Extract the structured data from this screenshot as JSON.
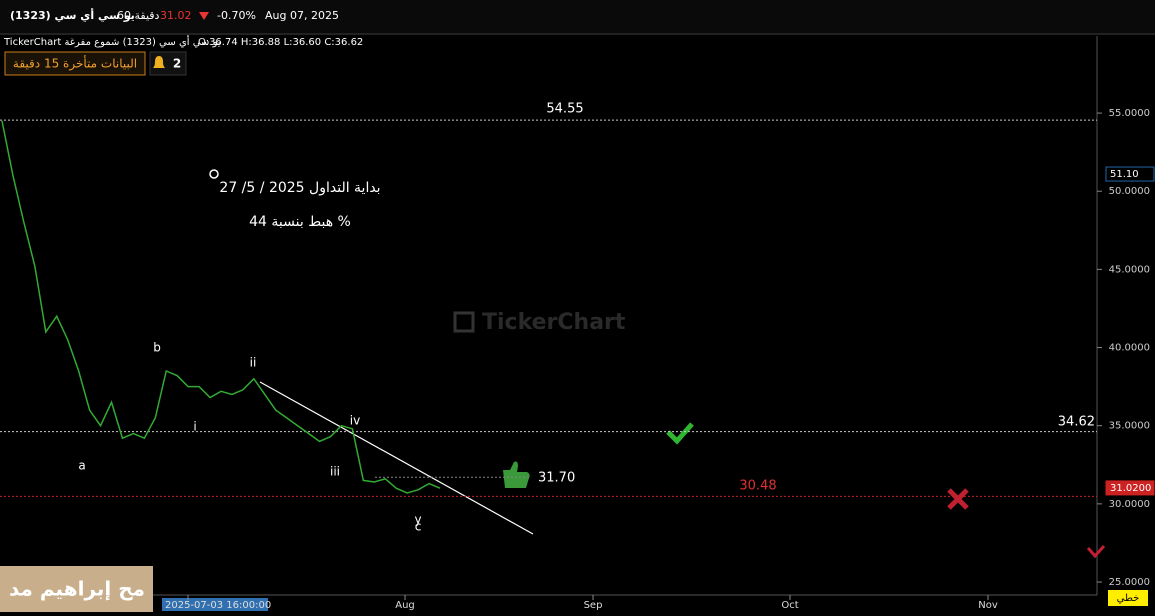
{
  "header": {
    "symbol": "يو سي أي سي (1323)",
    "interval": "60 دقيقة",
    "price": "31.02",
    "change": "-0.70%",
    "date": "Aug 07, 2025",
    "info": "TickerChart يو سي أي سي (1323) شموع مفرغة",
    "ohlc": "O:36.74 H:36.88 L:36.60 C:36.62",
    "delay_badge": "البيانات متأخرة 15 دقيقة",
    "alerts": "2",
    "watermark": "TickerChart",
    "overlay": "مح إبراهيم مد",
    "chart_style": "خطي"
  },
  "chart_data": {
    "type": "line",
    "color": "#33aa33",
    "values": [
      54.5,
      51,
      48,
      45.2,
      41,
      42,
      40.5,
      38.5,
      36,
      35,
      36.5,
      34.2,
      34.5,
      34.2,
      35.5,
      38.5,
      38.2,
      37.5,
      37.5,
      36.8,
      37.2,
      37,
      37.3,
      38,
      37,
      36,
      35.5,
      35,
      34.5,
      34,
      34.3,
      35,
      34.8,
      31.5,
      31.4,
      31.6,
      31,
      30.7,
      30.9,
      31.3,
      31
    ],
    "ylim": [
      24.17,
      59.93
    ],
    "yticks": [
      {
        "value": 25,
        "label": "25.0000"
      },
      {
        "value": 30,
        "label": "30.0000"
      },
      {
        "value": 35,
        "label": "35.0000"
      },
      {
        "value": 40,
        "label": "40.0000"
      },
      {
        "value": 45,
        "label": "45.0000"
      },
      {
        "value": 50,
        "label": "50.0000"
      },
      {
        "value": 55,
        "label": "55.0000"
      }
    ],
    "x_labels": [
      "2025-07-03 16:00:00",
      "Aug",
      "Sep",
      "Oct",
      "Nov"
    ],
    "levels": [
      {
        "value": 54.55,
        "label": "54.55",
        "color": "#cccccc"
      },
      {
        "value": 34.62,
        "label": "34.62",
        "color": "#cccccc"
      },
      {
        "value": 31.7,
        "label": "31.70",
        "color": "#888888"
      },
      {
        "value": 30.48,
        "label": "30.48",
        "color": "#cc2222"
      }
    ],
    "price_tags": [
      {
        "value": 51.1,
        "label": "51.10",
        "color": "#2266aa"
      },
      {
        "value": 31.02,
        "label": "31.0200",
        "color": "#cc2222"
      }
    ],
    "annotations": [
      "a",
      "b",
      "i",
      "ii",
      "iii",
      "iv",
      "y",
      "c",
      "بداية التداول  2025 / 5/ 27",
      "هبط بنسبة 44 %"
    ]
  }
}
